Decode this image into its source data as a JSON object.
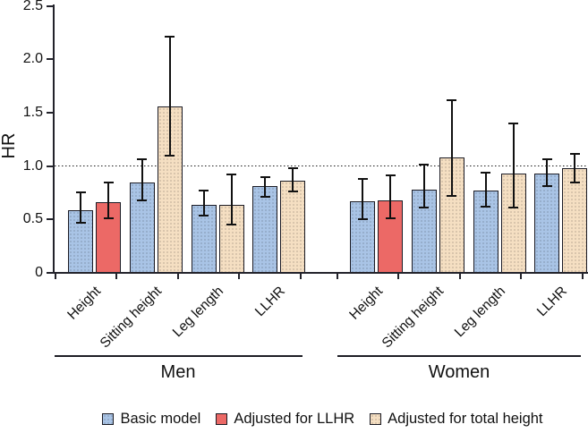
{
  "chart_data": {
    "type": "bar",
    "title": "",
    "ylabel": "HR",
    "ylim": [
      0,
      2.5
    ],
    "yticks": [
      0,
      0.5,
      1.0,
      1.5,
      2.0,
      2.5
    ],
    "ytick_labels": [
      "0",
      "0.5",
      "1.0",
      "1.5",
      "2.0",
      "2.5"
    ],
    "reference_line": 1.0,
    "grid": false,
    "legend_position": "bottom",
    "error_bars": "95% CI shown as whiskers",
    "legend": [
      {
        "label": "Basic model",
        "color": "#a9c4e6",
        "texture": "dots"
      },
      {
        "label": "Adjusted for LLHR",
        "color": "#ec6966",
        "texture": "solid"
      },
      {
        "label": "Adjusted for total height",
        "color": "#f5dfc2",
        "texture": "dots"
      }
    ],
    "groups": [
      {
        "label": "Men",
        "categories": [
          {
            "label": "Height",
            "bars": [
              {
                "series": "Basic model",
                "hr": 0.59,
                "ci_low": 0.47,
                "ci_high": 0.75
              },
              {
                "series": "Adjusted for LLHR",
                "hr": 0.66,
                "ci_low": 0.51,
                "ci_high": 0.85
              }
            ]
          },
          {
            "label": "Sitting height",
            "bars": [
              {
                "series": "Basic model",
                "hr": 0.85,
                "ci_low": 0.68,
                "ci_high": 1.06
              },
              {
                "series": "Adjusted for total height",
                "hr": 1.56,
                "ci_low": 1.1,
                "ci_high": 2.21
              }
            ]
          },
          {
            "label": "Leg length",
            "bars": [
              {
                "series": "Basic model",
                "hr": 0.64,
                "ci_low": 0.54,
                "ci_high": 0.77
              },
              {
                "series": "Adjusted for total height",
                "hr": 0.64,
                "ci_low": 0.45,
                "ci_high": 0.92
              }
            ]
          },
          {
            "label": "LLHR",
            "bars": [
              {
                "series": "Basic model",
                "hr": 0.81,
                "ci_low": 0.71,
                "ci_high": 0.9
              },
              {
                "series": "Adjusted for total height",
                "hr": 0.86,
                "ci_low": 0.76,
                "ci_high": 0.98
              }
            ]
          }
        ]
      },
      {
        "label": "Women",
        "categories": [
          {
            "label": "Height",
            "bars": [
              {
                "series": "Basic model",
                "hr": 0.67,
                "ci_low": 0.5,
                "ci_high": 0.88
              },
              {
                "series": "Adjusted for LLHR",
                "hr": 0.68,
                "ci_low": 0.51,
                "ci_high": 0.91
              }
            ]
          },
          {
            "label": "Sitting height",
            "bars": [
              {
                "series": "Basic model",
                "hr": 0.78,
                "ci_low": 0.61,
                "ci_high": 1.01
              },
              {
                "series": "Adjusted for total height",
                "hr": 1.08,
                "ci_low": 0.72,
                "ci_high": 1.62
              }
            ]
          },
          {
            "label": "Leg length",
            "bars": [
              {
                "series": "Basic model",
                "hr": 0.77,
                "ci_low": 0.62,
                "ci_high": 0.94
              },
              {
                "series": "Adjusted for total height",
                "hr": 0.93,
                "ci_low": 0.61,
                "ci_high": 1.4
              }
            ]
          },
          {
            "label": "LLHR",
            "bars": [
              {
                "series": "Basic model",
                "hr": 0.93,
                "ci_low": 0.81,
                "ci_high": 1.06
              },
              {
                "series": "Adjusted for total height",
                "hr": 0.98,
                "ci_low": 0.85,
                "ci_high": 1.11
              }
            ]
          }
        ]
      }
    ]
  }
}
